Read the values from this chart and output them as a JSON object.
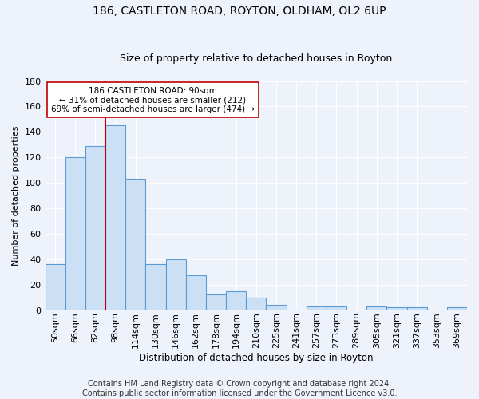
{
  "title": "186, CASTLETON ROAD, ROYTON, OLDHAM, OL2 6UP",
  "subtitle": "Size of property relative to detached houses in Royton",
  "xlabel": "Distribution of detached houses by size in Royton",
  "ylabel": "Number of detached properties",
  "categories": [
    "50sqm",
    "66sqm",
    "82sqm",
    "98sqm",
    "114sqm",
    "130sqm",
    "146sqm",
    "162sqm",
    "178sqm",
    "194sqm",
    "210sqm",
    "225sqm",
    "241sqm",
    "257sqm",
    "273sqm",
    "289sqm",
    "305sqm",
    "321sqm",
    "337sqm",
    "353sqm",
    "369sqm"
  ],
  "values": [
    36,
    120,
    129,
    145,
    103,
    36,
    40,
    27,
    12,
    15,
    10,
    4,
    0,
    3,
    3,
    0,
    3,
    2,
    2,
    0,
    2
  ],
  "bar_color": "#cce0f5",
  "bar_edge_color": "#5b9bd5",
  "property_line_x": 2.5,
  "property_line_color": "#c00000",
  "annotation_text": "186 CASTLETON ROAD: 90sqm\n← 31% of detached houses are smaller (212)\n69% of semi-detached houses are larger (474) →",
  "annotation_box_color": "#ffffff",
  "annotation_box_edge": "#c00000",
  "footer_line1": "Contains HM Land Registry data © Crown copyright and database right 2024.",
  "footer_line2": "Contains public sector information licensed under the Government Licence v3.0.",
  "background_color": "#eef2fb",
  "ylim": [
    0,
    180
  ],
  "yticks": [
    0,
    20,
    40,
    60,
    80,
    100,
    120,
    140,
    160,
    180
  ],
  "grid_color": "#ffffff",
  "title_fontsize": 10,
  "subtitle_fontsize": 9,
  "axis_label_fontsize": 8,
  "tick_fontsize": 8,
  "footer_fontsize": 7
}
